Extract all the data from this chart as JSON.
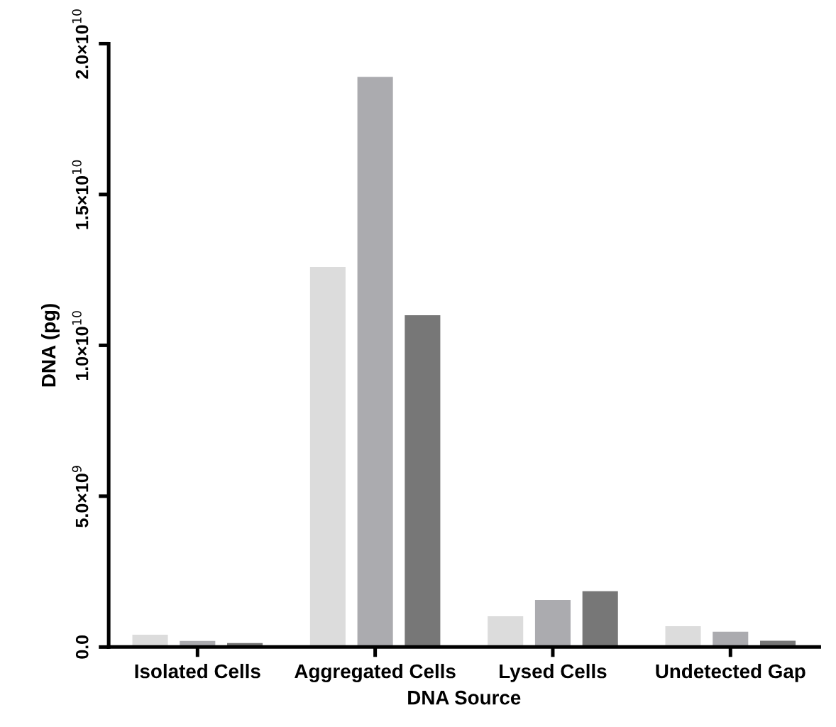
{
  "chart_data": {
    "type": "bar",
    "xlabel": "DNA Source",
    "ylabel": "DNA (pg)",
    "categories": [
      "Isolated Cells",
      "Aggregated Cells",
      "Lysed Cells",
      "Undetected Gap"
    ],
    "series": [
      {
        "color": "#dcdcdc",
        "values": [
          410000000.0,
          12600000000.0,
          1020000000.0,
          690000000.0
        ]
      },
      {
        "color": "#ababaf",
        "values": [
          200000000.0,
          18900000000.0,
          1560000000.0,
          510000000.0
        ]
      },
      {
        "color": "#777777",
        "values": [
          130000000.0,
          11000000000.0,
          1850000000.0,
          210000000.0
        ]
      }
    ],
    "ylim": [
      0,
      20000000000.0
    ],
    "yticks": [
      {
        "value": 0,
        "label": "0.0"
      },
      {
        "value": 5000000000.0,
        "label": "5.0×10$^{9}$"
      },
      {
        "value": 10000000000.0,
        "label": "1.0×10$^{10}$"
      },
      {
        "value": 15000000000.0,
        "label": "1.5×10$^{10}$"
      },
      {
        "value": 20000000000.0,
        "label": "2.0×10$^{10}$"
      }
    ],
    "grid": false,
    "legend": false
  }
}
